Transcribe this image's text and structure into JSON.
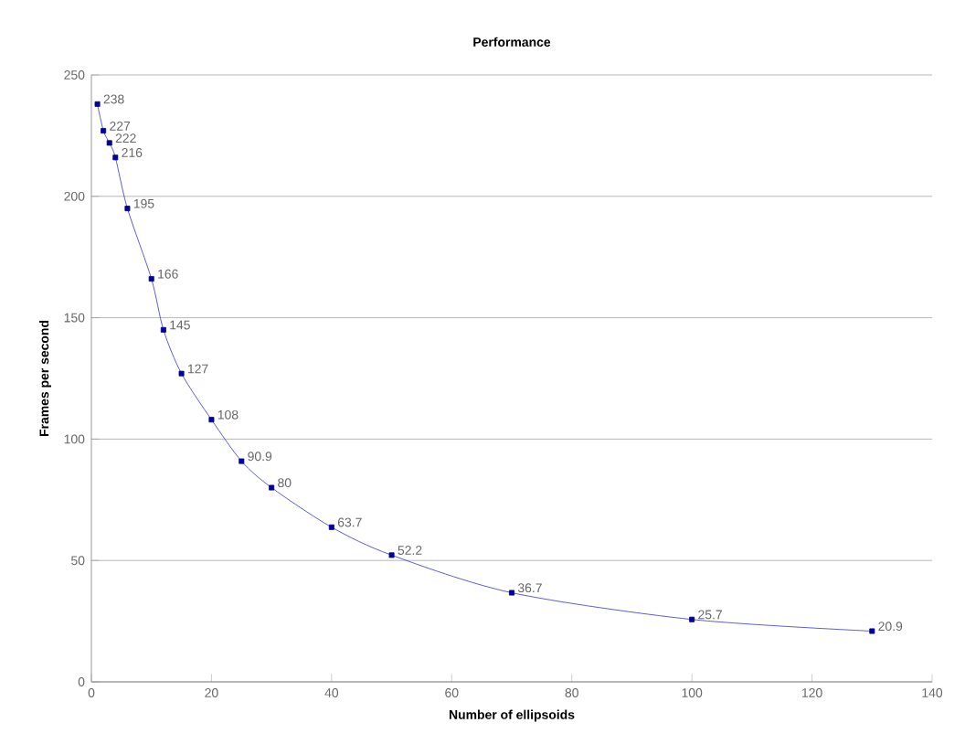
{
  "chart_data": {
    "type": "line",
    "title": "Performance",
    "xlabel": "Number of ellipsoids",
    "ylabel": "Frames per second",
    "x": [
      1,
      2,
      3,
      4,
      6,
      10,
      12,
      15,
      20,
      25,
      30,
      40,
      50,
      70,
      100,
      130
    ],
    "values": [
      238,
      227,
      222,
      216,
      195,
      166,
      145,
      127,
      108,
      90.9,
      80,
      63.7,
      52.2,
      36.7,
      25.7,
      20.9
    ],
    "value_labels": [
      "238",
      "227",
      "222",
      "216",
      "195",
      "166",
      "145",
      "127",
      "108",
      "90.9",
      "80",
      "63.7",
      "52.2",
      "36.7",
      "25.7",
      "20.9"
    ],
    "color": "#3333cc",
    "marker": "square",
    "line_style": "solid",
    "grid": "y",
    "xlim": [
      0,
      140
    ],
    "xticks": [
      0,
      20,
      40,
      60,
      80,
      100,
      120,
      140
    ],
    "ylim": [
      0,
      250
    ],
    "yticks": [
      0,
      50,
      100,
      150,
      200,
      250
    ]
  }
}
